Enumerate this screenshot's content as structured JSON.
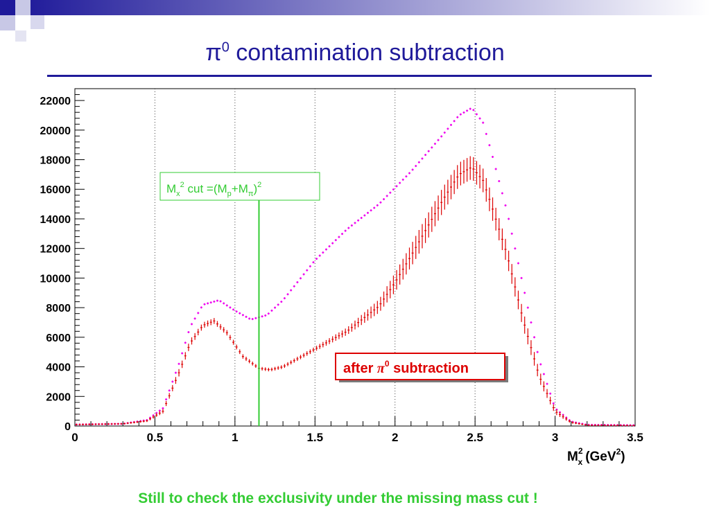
{
  "slide": {
    "title_main": "π",
    "title_sup": "0",
    "title_rest": " contamination subtraction",
    "footer": "Still to check the exclusivity under the missing mass cut !"
  },
  "colors": {
    "title": "#1f1a9a",
    "before_series": "#ee00ee",
    "after_series": "#dd0000",
    "cut_line": "#33cc33",
    "footer": "#33cc33"
  },
  "chart_data": {
    "type": "scatter",
    "title": "",
    "xlabel": "M_x^2 (GeV^2)",
    "xlabel_parts": {
      "m": "M",
      "sup": "2",
      "sub": "x",
      "unit": "(GeV",
      "unit_sup": "2",
      "close": ")"
    },
    "ylabel": "",
    "xlim": [
      0,
      3.5
    ],
    "ylim": [
      0,
      22800
    ],
    "x_ticks": [
      "0",
      "0.5",
      "1",
      "1.5",
      "2",
      "2.5",
      "3",
      "3.5"
    ],
    "x_tick_values": [
      0,
      0.5,
      1,
      1.5,
      2,
      2.5,
      3,
      3.5
    ],
    "y_ticks": [
      "0",
      "2000",
      "4000",
      "6000",
      "8000",
      "10000",
      "12000",
      "14000",
      "16000",
      "18000",
      "20000",
      "22000"
    ],
    "y_tick_values": [
      0,
      2000,
      4000,
      6000,
      8000,
      10000,
      12000,
      14000,
      16000,
      18000,
      20000,
      22000
    ],
    "vertical_grid": true,
    "series": [
      {
        "color": "#ee00ee",
        "x": [
          0.0,
          0.3,
          0.45,
          0.55,
          0.65,
          0.72,
          0.8,
          0.9,
          1.0,
          1.1,
          1.2,
          1.3,
          1.5,
          1.7,
          1.9,
          2.1,
          2.3,
          2.4,
          2.48,
          2.55,
          2.6,
          2.7,
          2.8,
          2.9,
          3.0,
          3.1,
          3.2,
          3.5
        ],
        "y": [
          100,
          150,
          400,
          1200,
          4200,
          6700,
          8200,
          8500,
          7800,
          7200,
          7500,
          8500,
          11200,
          13300,
          15000,
          17200,
          19700,
          21000,
          21500,
          20500,
          18600,
          14500,
          9500,
          4500,
          1200,
          300,
          80,
          50
        ]
      },
      {
        "color": "#dd0000",
        "error_bars": true,
        "x": [
          0.0,
          0.3,
          0.45,
          0.55,
          0.65,
          0.72,
          0.8,
          0.87,
          0.95,
          1.05,
          1.15,
          1.22,
          1.3,
          1.5,
          1.7,
          1.9,
          2.0,
          2.1,
          2.2,
          2.3,
          2.4,
          2.48,
          2.55,
          2.6,
          2.7,
          2.8,
          2.9,
          3.0,
          3.1,
          3.2,
          3.5
        ],
        "y": [
          100,
          150,
          350,
          1000,
          3600,
          5600,
          6800,
          7100,
          6300,
          4700,
          3900,
          3800,
          4000,
          5200,
          6400,
          8100,
          9700,
          11500,
          13400,
          15300,
          17000,
          17500,
          16600,
          15000,
          11600,
          7200,
          3400,
          1000,
          250,
          60,
          40
        ],
        "errors": [
          50,
          50,
          80,
          150,
          250,
          250,
          200,
          200,
          180,
          150,
          120,
          120,
          130,
          160,
          250,
          450,
          650,
          750,
          850,
          850,
          800,
          800,
          800,
          800,
          700,
          600,
          400,
          200,
          80,
          40,
          30
        ]
      }
    ],
    "annotations": {
      "cut": {
        "x": 1.15,
        "label_m": "M",
        "label_x_sub": "x",
        "label_sup": "2",
        "label_mid": " cut =(M",
        "label_p_sub": "p",
        "label_plus": "+M",
        "label_pi_sub": "π",
        "label_close": ")",
        "label_close_sup": "2"
      },
      "legend_after": {
        "text_a": "after ",
        "text_pi": "π",
        "text_sup": "0",
        "text_b": " subtraction",
        "placement": "lower-right"
      }
    }
  }
}
